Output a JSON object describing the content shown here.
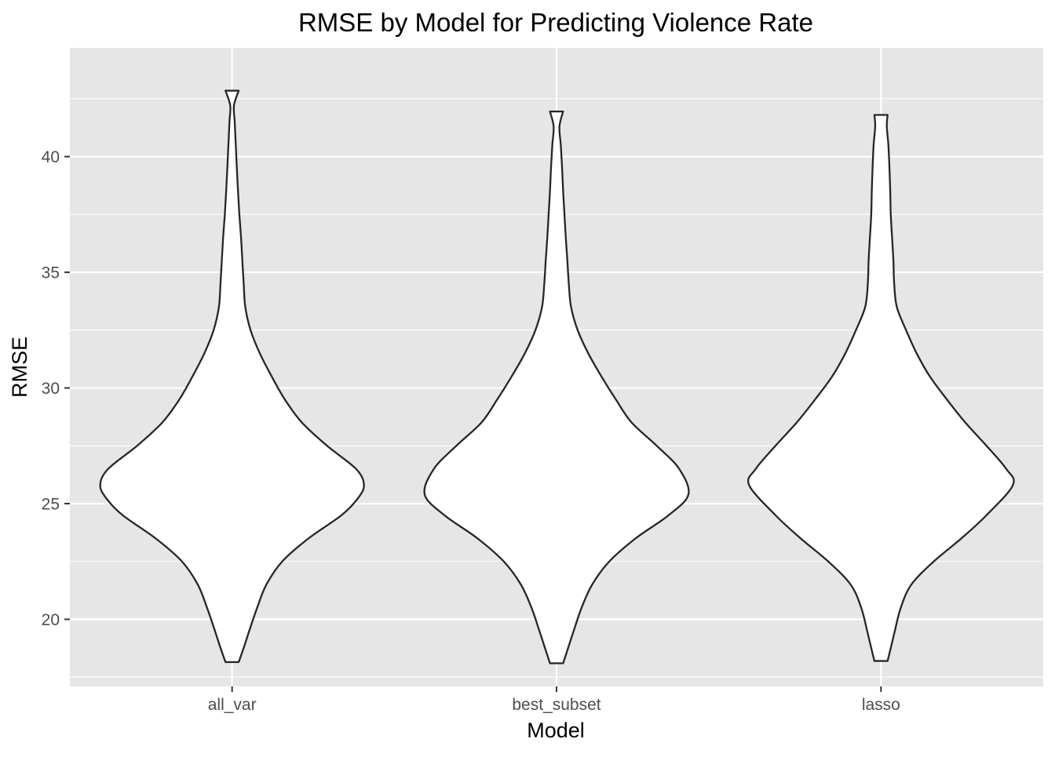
{
  "chart_data": {
    "type": "violin",
    "title": "RMSE by Model for Predicting Violence Rate",
    "xlabel": "Model",
    "ylabel": "RMSE",
    "categories": [
      "all_var",
      "best_subset",
      "lasso"
    ],
    "y_ticks": [
      20,
      25,
      30,
      35,
      40
    ],
    "y_tick_labels": [
      "20",
      "25",
      "30",
      "35",
      "40"
    ],
    "ylim": [
      17.1,
      44.7
    ],
    "grid": true,
    "panel_background": "#e6e6e6",
    "violins": [
      {
        "category": "all_var",
        "min": 18.15,
        "max": 42.85,
        "density_profile": [
          [
            18.15,
            0.05
          ],
          [
            18.8,
            0.09
          ],
          [
            19.5,
            0.13
          ],
          [
            20.5,
            0.19
          ],
          [
            21.5,
            0.26
          ],
          [
            22.5,
            0.38
          ],
          [
            23.5,
            0.58
          ],
          [
            24.5,
            0.83
          ],
          [
            25.2,
            0.95
          ],
          [
            25.8,
            1.0
          ],
          [
            26.5,
            0.94
          ],
          [
            27.5,
            0.72
          ],
          [
            28.5,
            0.53
          ],
          [
            29.5,
            0.4
          ],
          [
            30.5,
            0.3
          ],
          [
            31.5,
            0.21
          ],
          [
            32.5,
            0.14
          ],
          [
            33.5,
            0.1
          ],
          [
            34.5,
            0.088
          ],
          [
            35.5,
            0.078
          ],
          [
            36.5,
            0.068
          ],
          [
            37.5,
            0.055
          ],
          [
            38.5,
            0.045
          ],
          [
            39.5,
            0.036
          ],
          [
            40.5,
            0.028
          ],
          [
            41.5,
            0.02
          ],
          [
            42.2,
            0.014
          ],
          [
            42.85,
            0.05
          ]
        ]
      },
      {
        "category": "best_subset",
        "min": 18.1,
        "max": 41.95,
        "density_profile": [
          [
            18.1,
            0.05
          ],
          [
            18.8,
            0.09
          ],
          [
            19.5,
            0.13
          ],
          [
            20.5,
            0.19
          ],
          [
            21.5,
            0.27
          ],
          [
            22.5,
            0.4
          ],
          [
            23.5,
            0.6
          ],
          [
            24.5,
            0.85
          ],
          [
            25.4,
            1.0
          ],
          [
            26.5,
            0.93
          ],
          [
            27.5,
            0.76
          ],
          [
            28.5,
            0.57
          ],
          [
            29.5,
            0.45
          ],
          [
            30.5,
            0.34
          ],
          [
            31.5,
            0.24
          ],
          [
            32.5,
            0.16
          ],
          [
            33.5,
            0.11
          ],
          [
            34.5,
            0.093
          ],
          [
            35.5,
            0.082
          ],
          [
            36.5,
            0.07
          ],
          [
            37.5,
            0.06
          ],
          [
            38.5,
            0.05
          ],
          [
            39.5,
            0.042
          ],
          [
            40.5,
            0.032
          ],
          [
            41.3,
            0.022
          ],
          [
            41.95,
            0.05
          ]
        ]
      },
      {
        "category": "lasso",
        "min": 18.2,
        "max": 41.8,
        "density_profile": [
          [
            18.2,
            0.05
          ],
          [
            18.9,
            0.08
          ],
          [
            19.5,
            0.105
          ],
          [
            20.5,
            0.15
          ],
          [
            21.5,
            0.23
          ],
          [
            22.5,
            0.4
          ],
          [
            23.5,
            0.61
          ],
          [
            24.5,
            0.8
          ],
          [
            25.8,
            1.0
          ],
          [
            26.5,
            0.95
          ],
          [
            27.5,
            0.8
          ],
          [
            28.5,
            0.64
          ],
          [
            29.5,
            0.5
          ],
          [
            30.5,
            0.37
          ],
          [
            31.5,
            0.27
          ],
          [
            32.5,
            0.19
          ],
          [
            33.5,
            0.12
          ],
          [
            34.5,
            0.1
          ],
          [
            35.5,
            0.094
          ],
          [
            36.5,
            0.084
          ],
          [
            37.5,
            0.074
          ],
          [
            38.5,
            0.07
          ],
          [
            39.5,
            0.064
          ],
          [
            40.5,
            0.056
          ],
          [
            41.3,
            0.044
          ],
          [
            41.8,
            0.05
          ]
        ]
      }
    ]
  }
}
